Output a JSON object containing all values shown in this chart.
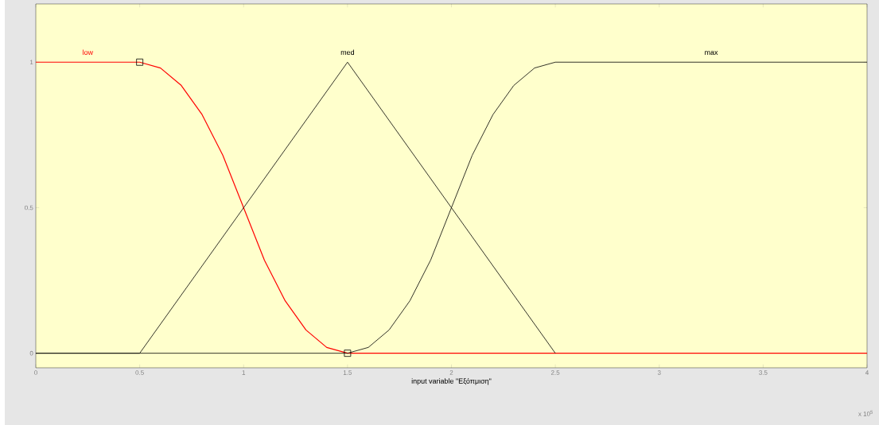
{
  "chart_data": {
    "type": "line",
    "xlabel": "input variable \"Εξόπμιση\"",
    "xlim": [
      0,
      4
    ],
    "ylim": [
      -0.05,
      1.2
    ],
    "xticks": [
      0,
      0.5,
      1,
      1.5,
      2,
      2.5,
      3,
      3.5,
      4
    ],
    "yticks": [
      0,
      0.5,
      1
    ],
    "annotations": [
      "x 10$^{5}$"
    ],
    "series": [
      {
        "name": "low",
        "color": "#ff0000",
        "x": [
          0,
          0.5,
          0.6,
          0.7,
          0.8,
          0.9,
          1.0,
          1.1,
          1.2,
          1.3,
          1.4,
          1.5,
          4
        ],
        "values": [
          1,
          1,
          0.98,
          0.92,
          0.82,
          0.68,
          0.5,
          0.32,
          0.18,
          0.08,
          0.02,
          0,
          0
        ]
      },
      {
        "name": "med",
        "color": "#000000",
        "x": [
          0,
          0.5,
          1.5,
          2.5
        ],
        "values": [
          0,
          0,
          1,
          0
        ]
      },
      {
        "name": "max",
        "color": "#000000",
        "x": [
          0,
          1.5,
          1.6,
          1.7,
          1.8,
          1.9,
          2.0,
          2.1,
          2.2,
          2.3,
          2.4,
          2.5,
          4
        ],
        "values": [
          0,
          0,
          0.02,
          0.08,
          0.18,
          0.32,
          0.5,
          0.68,
          0.82,
          0.92,
          0.98,
          1,
          1
        ]
      },
      {
        "type": "scatter",
        "marker": "square",
        "color": "#000000",
        "x": [
          0.5,
          1.5
        ],
        "values": [
          1,
          0
        ]
      }
    ]
  }
}
